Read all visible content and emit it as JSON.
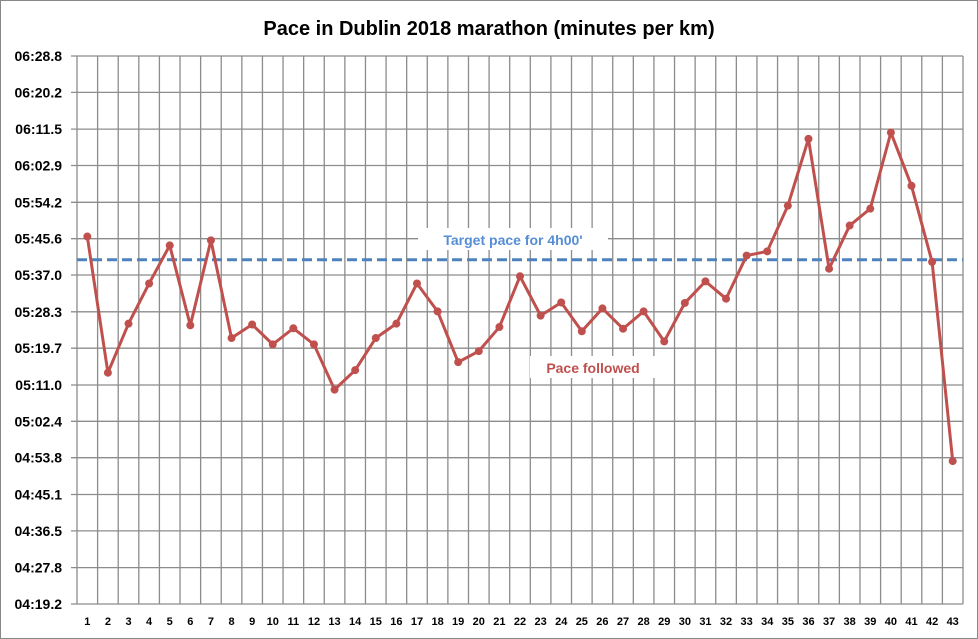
{
  "chart_data": {
    "type": "line",
    "title": "Pace in Dublin 2018 marathon (minutes per km)",
    "xlabel": "",
    "ylabel": "",
    "grid": true,
    "legend": "none",
    "x": [
      1,
      2,
      3,
      4,
      5,
      6,
      7,
      8,
      9,
      10,
      11,
      12,
      13,
      14,
      15,
      16,
      17,
      18,
      19,
      20,
      21,
      22,
      23,
      24,
      25,
      26,
      27,
      28,
      29,
      30,
      31,
      32,
      33,
      34,
      35,
      36,
      37,
      38,
      39,
      40,
      41,
      42,
      43
    ],
    "y_ticks": [
      "06:28.8",
      "06:20.2",
      "06:11.5",
      "06:02.9",
      "05:54.2",
      "05:45.6",
      "05:37.0",
      "05:28.3",
      "05:19.7",
      "05:11.0",
      "05:02.4",
      "04:53.8",
      "04:45.1",
      "04:36.5",
      "04:27.8",
      "04:19.2"
    ],
    "ylim": [
      "04:19.2",
      "06:28.8"
    ],
    "series": [
      {
        "name": "Pace followed",
        "color": "#c0504d",
        "values": [
          "05:46.1",
          "05:13.9",
          "05:25.5",
          "05:35.0",
          "05:44.0",
          "05:25.1",
          "05:45.2",
          "05:22.1",
          "05:25.3",
          "05:20.6",
          "05:24.4",
          "05:20.6",
          "05:09.9",
          "05:14.5",
          "05:22.1",
          "05:25.5",
          "05:35.0",
          "05:28.4",
          "05:16.4",
          "05:19.0",
          "05:24.7",
          "05:36.7",
          "05:27.4",
          "05:30.5",
          "05:23.7",
          "05:29.1",
          "05:24.3",
          "05:28.4",
          "05:21.3",
          "05:30.4",
          "05:35.5",
          "05:31.4",
          "05:41.6",
          "05:42.6",
          "05:53.4",
          "06:09.2",
          "05:38.5",
          "05:48.7",
          "05:52.7",
          "06:10.7",
          "05:58.1",
          "05:40.1",
          "04:53.0"
        ]
      }
    ],
    "reference_line": {
      "label": "Target pace for 4h00'",
      "value": "05:40.6",
      "color": "#4f81bd",
      "style": "dashed"
    }
  }
}
